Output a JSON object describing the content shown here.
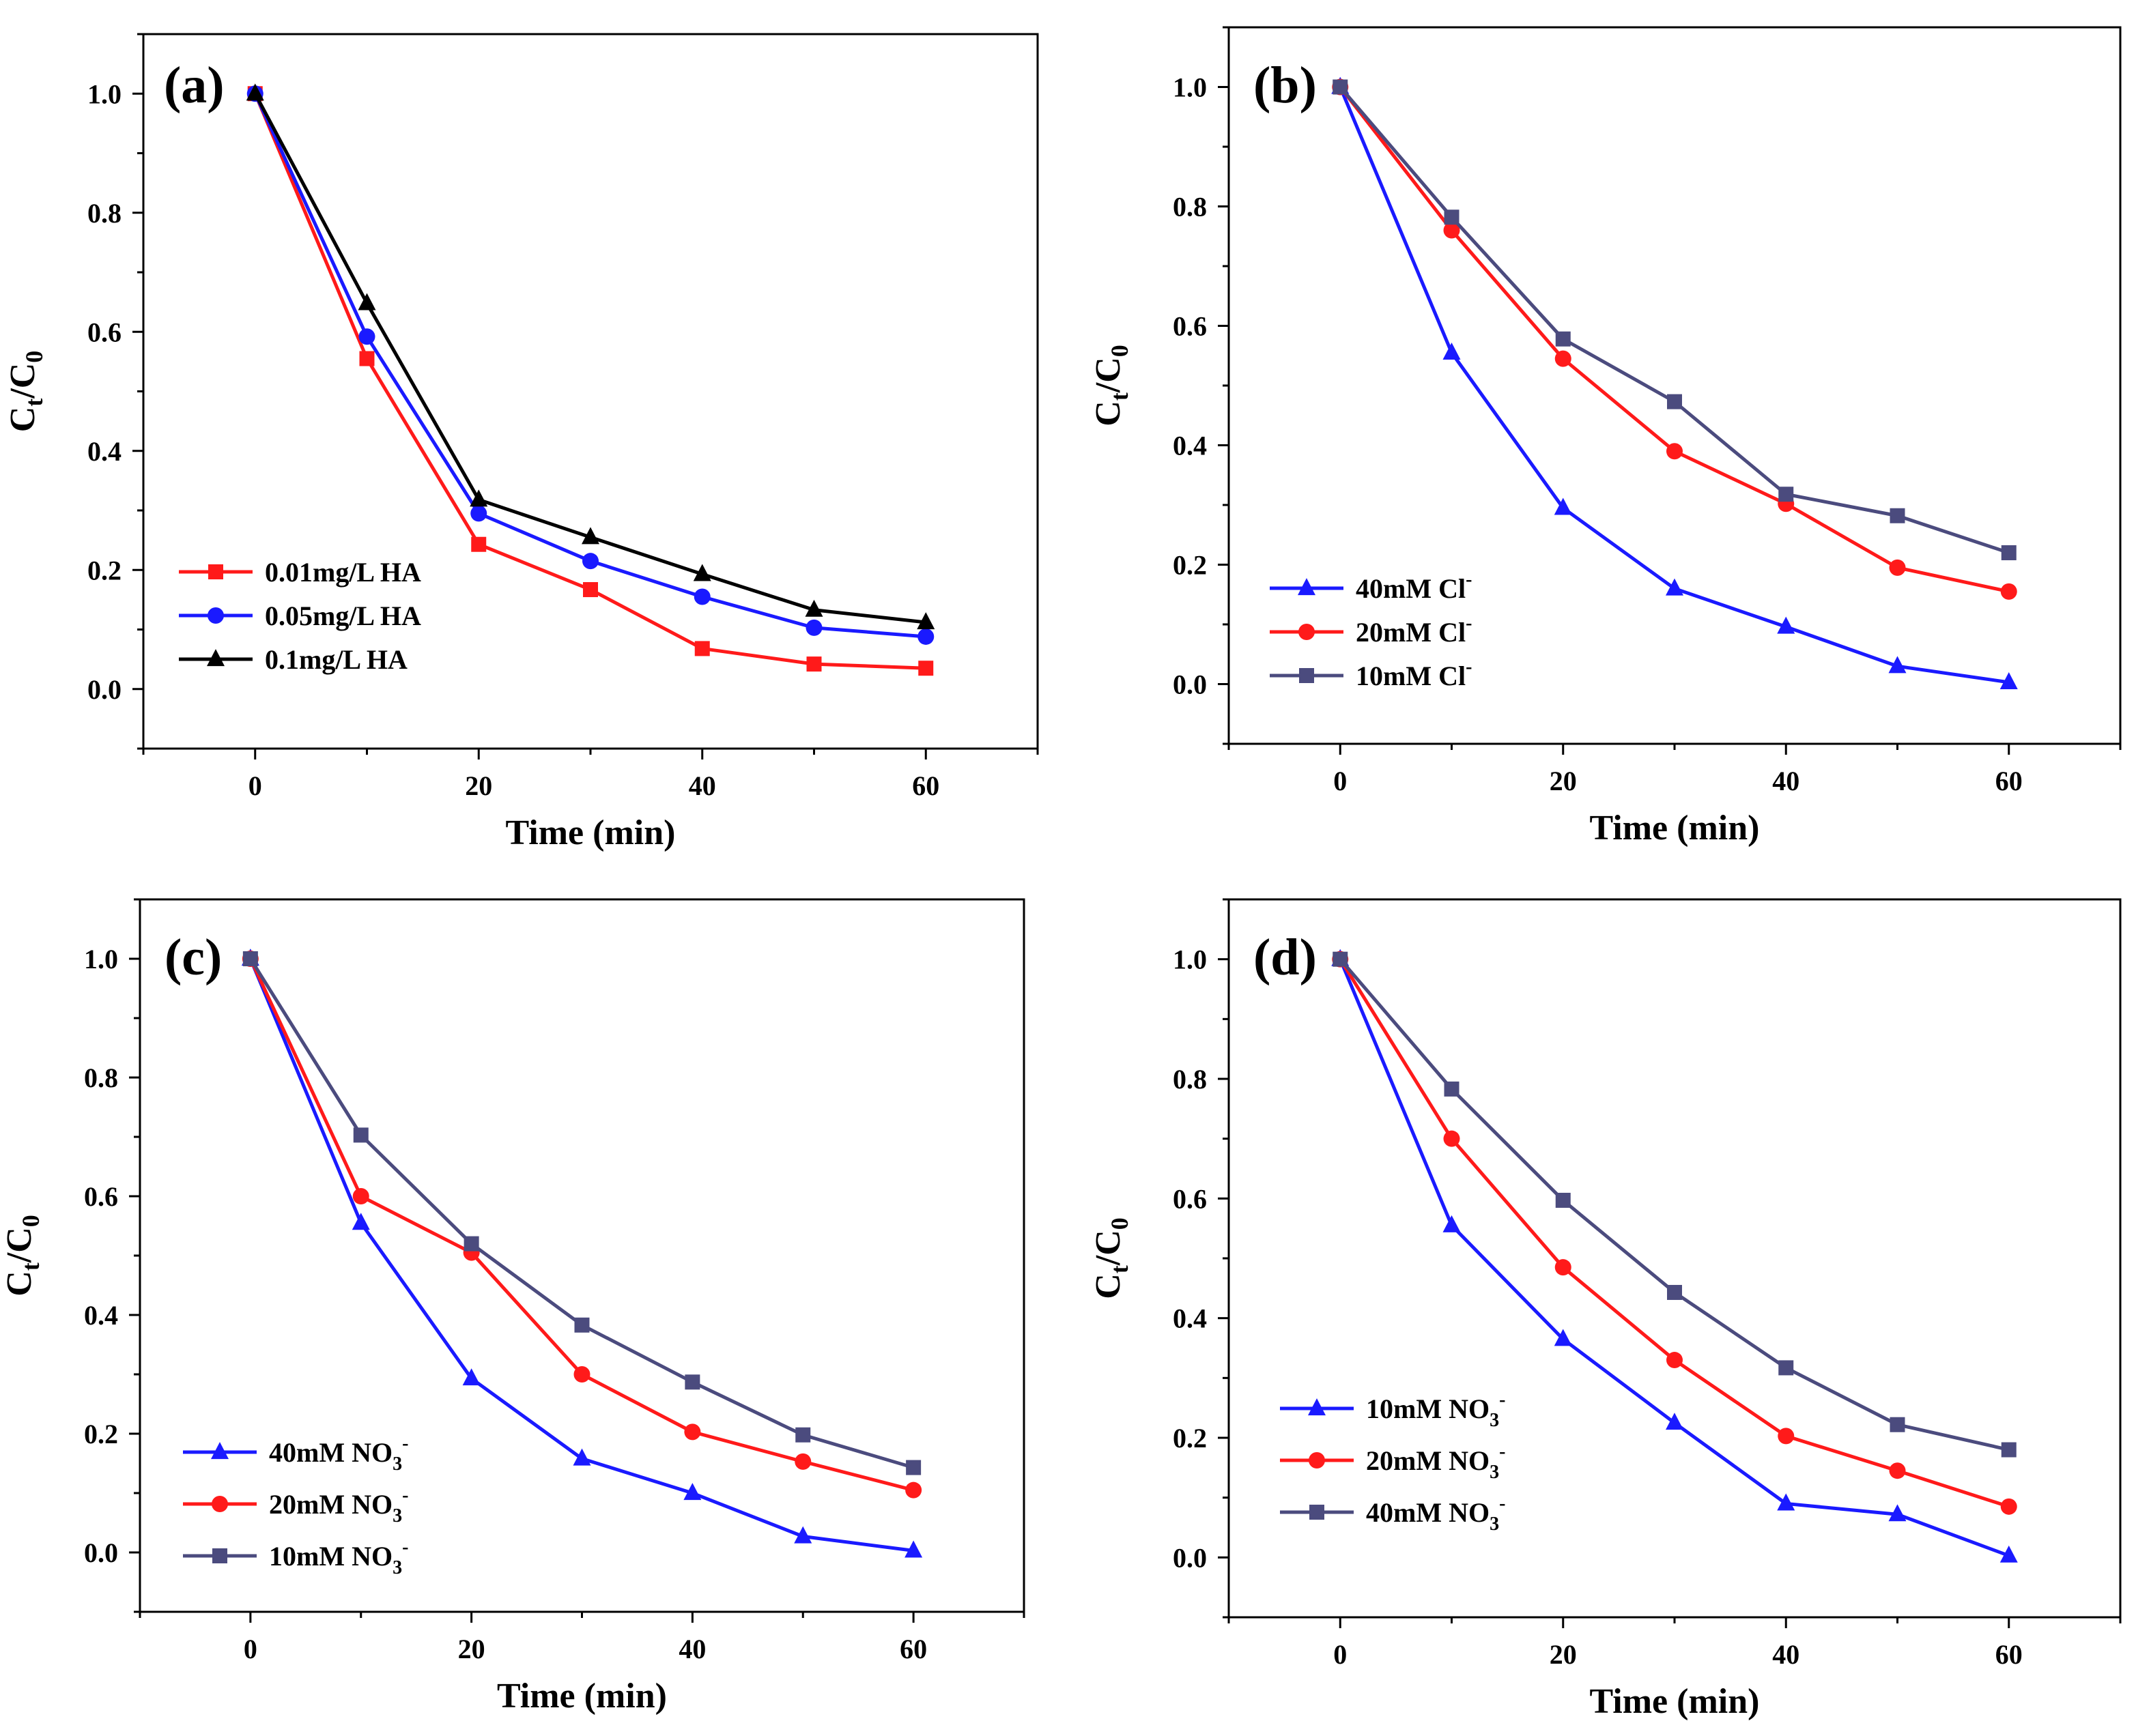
{
  "figure": {
    "x_axis_label": "Time (min)",
    "y_axis_label": {
      "main": "C",
      "sub1": "t",
      "mid": "/C",
      "sub2": "0"
    },
    "xlim": [
      -10,
      70
    ],
    "ylim": [
      -0.1,
      1.1
    ],
    "x_ticks": [
      0,
      20,
      40,
      60
    ],
    "y_ticks": [
      0.0,
      0.2,
      0.4,
      0.6,
      0.8,
      1.0
    ]
  },
  "chart_data": [
    {
      "type": "line",
      "panel": "(a)",
      "title": "",
      "xlabel": "Time (min)",
      "ylabel": "Ct/C0",
      "xlim": [
        -10,
        70
      ],
      "ylim": [
        -0.1,
        1.1
      ],
      "legend_position": "bottom-left",
      "x": [
        0,
        10,
        20,
        30,
        40,
        50,
        60
      ],
      "series": [
        {
          "name": "0.01mg/L HA",
          "color": "#ff1a1a",
          "marker": "square",
          "values": [
            1.0,
            0.555,
            0.243,
            0.167,
            0.068,
            0.042,
            0.035
          ]
        },
        {
          "name": "0.05mg/L HA",
          "color": "#1a1aff",
          "marker": "circle",
          "values": [
            1.0,
            0.592,
            0.295,
            0.215,
            0.155,
            0.103,
            0.088
          ]
        },
        {
          "name": "0.1mg/L HA",
          "color": "#000000",
          "marker": "triangle",
          "values": [
            1.0,
            0.648,
            0.318,
            0.255,
            0.193,
            0.133,
            0.112
          ]
        }
      ]
    },
    {
      "type": "line",
      "panel": "(b)",
      "title": "",
      "xlabel": "Time (min)",
      "ylabel": "Ct/C0",
      "xlim": [
        -10,
        70
      ],
      "ylim": [
        -0.1,
        1.1
      ],
      "legend_position": "bottom-left",
      "x": [
        0,
        10,
        20,
        30,
        40,
        50,
        60
      ],
      "series": [
        {
          "name": "40mM Cl",
          "sup": "-",
          "color": "#1a1aff",
          "marker": "triangle",
          "values": [
            1.0,
            0.555,
            0.295,
            0.16,
            0.096,
            0.03,
            0.003
          ]
        },
        {
          "name": "20mM Cl",
          "sup": "-",
          "color": "#ff1a1a",
          "marker": "circle",
          "values": [
            1.0,
            0.76,
            0.545,
            0.39,
            0.302,
            0.195,
            0.155
          ]
        },
        {
          "name": "10mM Cl",
          "sup": "-",
          "color": "#4b4b7e",
          "marker": "square",
          "values": [
            1.0,
            0.782,
            0.578,
            0.473,
            0.318,
            0.282,
            0.22
          ]
        }
      ]
    },
    {
      "type": "line",
      "panel": "(c)",
      "title": "",
      "xlabel": "Time (min)",
      "ylabel": "Ct/C0",
      "xlim": [
        -10,
        70
      ],
      "ylim": [
        -0.1,
        1.1
      ],
      "legend_position": "bottom-left",
      "x": [
        0,
        10,
        20,
        30,
        40,
        50,
        60
      ],
      "series": [
        {
          "name": "40mM NO",
          "sub": "3",
          "sup": "-",
          "color": "#1a1aff",
          "marker": "triangle",
          "values": [
            1.0,
            0.555,
            0.293,
            0.158,
            0.1,
            0.027,
            0.003
          ]
        },
        {
          "name": "20mM NO",
          "sub": "3",
          "sup": "-",
          "color": "#ff1a1a",
          "marker": "circle",
          "values": [
            1.0,
            0.6,
            0.505,
            0.3,
            0.203,
            0.153,
            0.105
          ]
        },
        {
          "name": "10mM NO",
          "sub": "3",
          "sup": "-",
          "color": "#4b4b7e",
          "marker": "square",
          "values": [
            1.0,
            0.703,
            0.52,
            0.383,
            0.287,
            0.198,
            0.143
          ]
        }
      ]
    },
    {
      "type": "line",
      "panel": "(d)",
      "title": "",
      "xlabel": "Time (min)",
      "ylabel": "Ct/C0",
      "xlim": [
        -10,
        70
      ],
      "ylim": [
        -0.1,
        1.1
      ],
      "legend_position": "bottom-left",
      "x": [
        0,
        10,
        20,
        30,
        40,
        50,
        60
      ],
      "series": [
        {
          "name": "10mM NO",
          "sub": "3",
          "sup": "-",
          "color": "#1a1aff",
          "marker": "triangle",
          "values": [
            1.0,
            0.555,
            0.365,
            0.225,
            0.09,
            0.072,
            0.003
          ]
        },
        {
          "name": "20mM NO",
          "sub": "3",
          "sup": "-",
          "color": "#ff1a1a",
          "marker": "circle",
          "values": [
            1.0,
            0.7,
            0.485,
            0.33,
            0.203,
            0.145,
            0.085
          ]
        },
        {
          "name": "40mM NO",
          "sub": "3",
          "sup": "-",
          "color": "#4b4b7e",
          "marker": "square",
          "values": [
            1.0,
            0.783,
            0.597,
            0.443,
            0.317,
            0.222,
            0.18
          ]
        }
      ]
    }
  ]
}
